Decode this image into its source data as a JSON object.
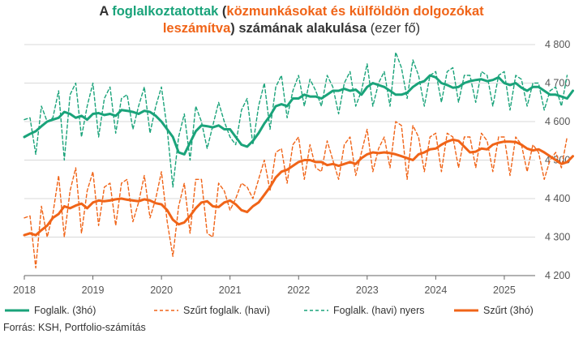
{
  "title": {
    "line1_pre": "A ",
    "line1_green": "foglalkoztatottak",
    "line1_mid": " (",
    "line1_orange": "közmunkásokat és külföldön dolgozókat",
    "line2_orange": "leszámítva",
    "line2_post": ") számának alakulása",
    "line2_unit": " (ezer fő)"
  },
  "source": "Forrás: KSH, Portfolio-számítás",
  "colors": {
    "green": "#1aa37a",
    "orange": "#f06418",
    "grid": "#d9d9d9",
    "text": "#333333"
  },
  "chart_data": {
    "type": "line",
    "xlim": [
      2018.0,
      2025.45
    ],
    "ylim": [
      4200,
      4800
    ],
    "x_ticks": [
      2018,
      2019,
      2020,
      2021,
      2022,
      2023,
      2024,
      2025
    ],
    "x_tick_labels": [
      "2018",
      "2019",
      "2020",
      "2021",
      "2022",
      "2023",
      "2024",
      "2025"
    ],
    "y_ticks": [
      4200,
      4300,
      4400,
      4500,
      4600,
      4700,
      4800
    ],
    "y_tick_labels": [
      "4 200",
      "4 300",
      "4 400",
      "4 500",
      "4 600",
      "4 700",
      "4 800"
    ],
    "grid": "horizontal",
    "legend_position": "bottom",
    "x_start": 2018.0,
    "x_step": 0.08333,
    "series": [
      {
        "name": "Foglalk. (3hó)",
        "color": "#1aa37a",
        "style": "solid",
        "values": [
          4560,
          4568,
          4575,
          4588,
          4600,
          4605,
          4610,
          4625,
          4620,
          4610,
          4615,
          4605,
          4620,
          4622,
          4617,
          4620,
          4615,
          4630,
          4628,
          4625,
          4620,
          4628,
          4625,
          4615,
          4600,
          4580,
          4560,
          4520,
          4515,
          4545,
          4575,
          4590,
          4588,
          4585,
          4590,
          4580,
          4580,
          4560,
          4540,
          4535,
          4550,
          4570,
          4595,
          4615,
          4640,
          4645,
          4640,
          4660,
          4660,
          4670,
          4665,
          4665,
          4660,
          4670,
          4680,
          4680,
          4685,
          4680,
          4683,
          4670,
          4690,
          4700,
          4695,
          4690,
          4680,
          4670,
          4670,
          4675,
          4690,
          4700,
          4705,
          4720,
          4715,
          4700,
          4695,
          4688,
          4690,
          4700,
          4705,
          4708,
          4710,
          4705,
          4708,
          4715,
          4700,
          4695,
          4700,
          4688,
          4680,
          4690,
          4690,
          4680,
          4670,
          4670,
          4665,
          4660,
          4680
        ]
      },
      {
        "name": "Szűrt foglalk. (havi)",
        "color": "#f06418",
        "style": "dashed",
        "values": [
          4350,
          4355,
          4220,
          4380,
          4300,
          4360,
          4460,
          4300,
          4420,
          4480,
          4310,
          4420,
          4470,
          4330,
          4430,
          4440,
          4330,
          4440,
          4450,
          4340,
          4390,
          4460,
          4350,
          4400,
          4470,
          4340,
          4250,
          4380,
          4440,
          4310,
          4450,
          4450,
          4310,
          4300,
          4440,
          4420,
          4370,
          4400,
          4440,
          4430,
          4400,
          4450,
          4500,
          4420,
          4520,
          4530,
          4440,
          4540,
          4560,
          4450,
          4540,
          4480,
          4470,
          4550,
          4500,
          4450,
          4540,
          4560,
          4460,
          4520,
          4580,
          4470,
          4530,
          4560,
          4480,
          4600,
          4590,
          4450,
          4590,
          4560,
          4470,
          4560,
          4570,
          4470,
          4570,
          4560,
          4480,
          4560,
          4560,
          4480,
          4570,
          4550,
          4470,
          4560,
          4560,
          4460,
          4560,
          4540,
          4470,
          4540,
          4520,
          4450,
          4500,
          4520,
          4480,
          4560
        ]
      },
      {
        "name": "Foglalk. (havi) nyers",
        "color": "#1aa37a",
        "style": "dashed",
        "values": [
          4605,
          4610,
          4515,
          4640,
          4600,
          4610,
          4680,
          4500,
          4670,
          4700,
          4560,
          4640,
          4700,
          4560,
          4660,
          4690,
          4570,
          4660,
          4670,
          4580,
          4640,
          4690,
          4570,
          4640,
          4690,
          4580,
          4430,
          4560,
          4620,
          4500,
          4640,
          4600,
          4530,
          4590,
          4650,
          4600,
          4560,
          4540,
          4630,
          4660,
          4540,
          4640,
          4700,
          4580,
          4690,
          4720,
          4610,
          4680,
          4720,
          4640,
          4710,
          4680,
          4640,
          4720,
          4690,
          4620,
          4700,
          4730,
          4640,
          4680,
          4750,
          4640,
          4700,
          4730,
          4640,
          4780,
          4740,
          4660,
          4760,
          4720,
          4640,
          4720,
          4730,
          4650,
          4730,
          4740,
          4650,
          4720,
          4720,
          4650,
          4730,
          4720,
          4640,
          4720,
          4730,
          4630,
          4720,
          4710,
          4640,
          4700,
          4700,
          4630,
          4680,
          4690,
          4640,
          4720
        ]
      },
      {
        "name": "Szűrt (3hó)",
        "color": "#f06418",
        "style": "solid",
        "values": [
          4305,
          4310,
          4305,
          4318,
          4330,
          4350,
          4360,
          4380,
          4375,
          4382,
          4387,
          4375,
          4390,
          4395,
          4393,
          4395,
          4398,
          4400,
          4397,
          4395,
          4393,
          4398,
          4395,
          4388,
          4385,
          4370,
          4345,
          4333,
          4338,
          4355,
          4375,
          4390,
          4393,
          4380,
          4378,
          4390,
          4395,
          4385,
          4370,
          4365,
          4380,
          4390,
          4410,
          4430,
          4455,
          4470,
          4475,
          4485,
          4495,
          4500,
          4500,
          4495,
          4495,
          4487,
          4490,
          4485,
          4490,
          4495,
          4490,
          4505,
          4515,
          4520,
          4518,
          4520,
          4518,
          4515,
          4510,
          4505,
          4500,
          4515,
          4520,
          4528,
          4530,
          4540,
          4548,
          4553,
          4550,
          4535,
          4520,
          4522,
          4530,
          4528,
          4540,
          4545,
          4548,
          4548,
          4547,
          4540,
          4530,
          4525,
          4528,
          4520,
          4510,
          4500,
          4490,
          4495,
          4510
        ]
      }
    ]
  }
}
